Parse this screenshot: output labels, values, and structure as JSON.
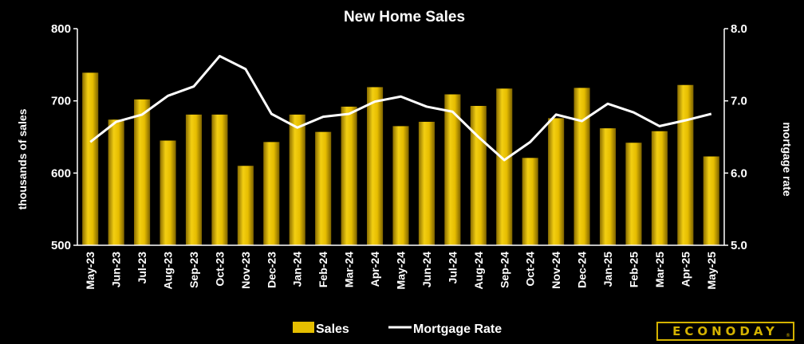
{
  "chart_data": {
    "type": "bar",
    "title": "New Home Sales",
    "categories": [
      "May-23",
      "Jun-23",
      "Jul-23",
      "Aug-23",
      "Sep-23",
      "Oct-23",
      "Nov-23",
      "Dec-23",
      "Jan-24",
      "Feb-24",
      "Mar-24",
      "Apr-24",
      "May-24",
      "Jun-24",
      "Jul-24",
      "Aug-24",
      "Sep-24",
      "Oct-24",
      "Nov-24",
      "Dec-24",
      "Jan-25",
      "Feb-25",
      "Mar-25",
      "Apr-25",
      "May-25"
    ],
    "series": [
      {
        "name": "Sales",
        "type": "bar",
        "axis": "left",
        "color": "#e5be00",
        "values": [
          739,
          674,
          702,
          645,
          681,
          681,
          610,
          643,
          681,
          657,
          692,
          719,
          665,
          671,
          709,
          693,
          717,
          621,
          676,
          718,
          662,
          642,
          658,
          722,
          623
        ]
      },
      {
        "name": "Mortgage Rate",
        "type": "line",
        "axis": "right",
        "color": "#ffffff",
        "values": [
          6.43,
          6.71,
          6.81,
          7.07,
          7.2,
          7.62,
          7.44,
          6.82,
          6.63,
          6.78,
          6.82,
          6.99,
          7.06,
          6.92,
          6.85,
          6.5,
          6.18,
          6.43,
          6.81,
          6.72,
          6.96,
          6.84,
          6.65,
          6.73,
          6.82
        ]
      }
    ],
    "ylabel_left": "thousands of sales",
    "ylabel_right": "mortgage rate",
    "ylim_left": [
      500,
      800
    ],
    "yticks_left": [
      "500",
      "600",
      "700",
      "800"
    ],
    "ylim_right": [
      5.0,
      8.0
    ],
    "yticks_right": [
      "5.0",
      "6.0",
      "7.0",
      "8.0"
    ],
    "grid": false,
    "legend": {
      "placement": "bottom",
      "items": [
        "Sales",
        "Mortgage Rate"
      ]
    }
  },
  "brand": {
    "logo_text": "ECONODAY",
    "accent": "#d4b200"
  }
}
